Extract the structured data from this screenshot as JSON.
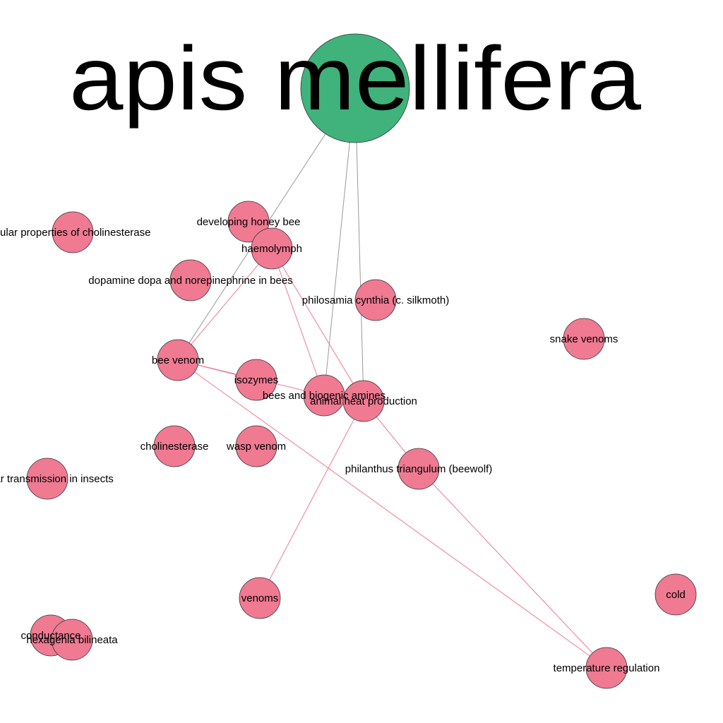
{
  "graph": {
    "hub": {
      "id": "apis_mellifera",
      "label": "apis mellifera",
      "color": "#3fb37b"
    },
    "node_color": "#ef7a92",
    "edge_colors": {
      "hub": "#999999",
      "node": "#ef7a92"
    },
    "nodes": [
      {
        "id": "mol_chol",
        "label": "cular properties of cholinesterase"
      },
      {
        "id": "dev_bee",
        "label": "developing honey bee"
      },
      {
        "id": "haemolymph",
        "label": "haemolymph"
      },
      {
        "id": "dopamine",
        "label": "dopamine dopa and norepinephrine in bees"
      },
      {
        "id": "philosamia",
        "label": "philosamia cynthia (c. silkmoth)"
      },
      {
        "id": "snake_venoms",
        "label": "snake venoms"
      },
      {
        "id": "bee_venom",
        "label": "bee venom"
      },
      {
        "id": "isozymes",
        "label": "isozymes"
      },
      {
        "id": "biogenic",
        "label": "bees and biogenic amines"
      },
      {
        "id": "heat",
        "label": "animal heat production"
      },
      {
        "id": "cholinesterase",
        "label": "cholinesterase"
      },
      {
        "id": "wasp_venom",
        "label": "wasp venom"
      },
      {
        "id": "neuromuscular",
        "label": "cular transmission in insects"
      },
      {
        "id": "beewolf",
        "label": "philanthus triangulum (beewolf)"
      },
      {
        "id": "venoms",
        "label": "venoms"
      },
      {
        "id": "cold",
        "label": "cold"
      },
      {
        "id": "conductance",
        "label": "conductance"
      },
      {
        "id": "hexagenia",
        "label": "hexagenia bilineata"
      },
      {
        "id": "temp_reg",
        "label": "temperature regulation"
      }
    ],
    "edges": [
      [
        "apis_mellifera",
        "bee_venom"
      ],
      [
        "apis_mellifera",
        "biogenic"
      ],
      [
        "apis_mellifera",
        "heat"
      ],
      [
        "haemolymph",
        "bee_venom"
      ],
      [
        "haemolymph",
        "biogenic"
      ],
      [
        "haemolymph",
        "heat"
      ],
      [
        "bee_venom",
        "isozymes"
      ],
      [
        "bee_venom",
        "biogenic"
      ],
      [
        "bee_venom",
        "temp_reg"
      ],
      [
        "heat",
        "beewolf"
      ],
      [
        "heat",
        "venoms"
      ],
      [
        "beewolf",
        "temp_reg"
      ]
    ]
  }
}
